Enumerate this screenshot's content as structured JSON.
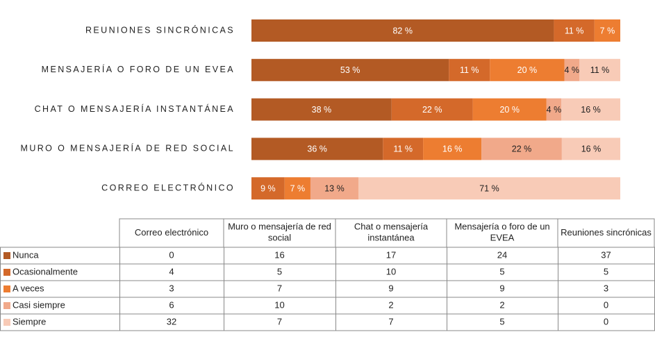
{
  "chart_data": {
    "type": "bar",
    "orientation": "horizontal",
    "stacked": "percent",
    "categories": [
      "Correo electrónico",
      "Muro o mensajería de red social",
      "Chat o mensajería instantánea",
      "Mensajería o foro de un EVEA",
      "Reuniones sincrónicas"
    ],
    "series": [
      {
        "name": "Nunca",
        "color": "#b35a24",
        "label_color": "#ffffff",
        "values": [
          0,
          36,
          38,
          53,
          82
        ],
        "value_labels": [
          null,
          "36 %",
          "38 %",
          "53 %",
          "82 %"
        ],
        "counts": [
          0,
          16,
          17,
          24,
          37
        ]
      },
      {
        "name": "Ocasionalmente",
        "color": "#d4692a",
        "label_color": "#ffffff",
        "values": [
          9,
          11,
          22,
          11,
          11
        ],
        "value_labels": [
          "9 %",
          "11 %",
          "22 %",
          "11 %",
          "11 %"
        ],
        "counts": [
          4,
          5,
          10,
          5,
          5
        ]
      },
      {
        "name": "A veces",
        "color": "#ed7d31",
        "label_color": "#ffffff",
        "values": [
          7,
          16,
          20,
          20,
          7
        ],
        "value_labels": [
          "7 %",
          "16 %",
          "20 %",
          "20 %",
          "7 %"
        ],
        "counts": [
          3,
          7,
          9,
          9,
          3
        ]
      },
      {
        "name": "Casi siempre",
        "color": "#f1a98a",
        "label_color": "#222222",
        "values": [
          13,
          22,
          4,
          4,
          0
        ],
        "value_labels": [
          "13 %",
          "22 %",
          "4 %",
          "4 %",
          null
        ],
        "counts": [
          6,
          10,
          2,
          2,
          0
        ]
      },
      {
        "name": "Siempre",
        "color": "#f8cbb7",
        "label_color": "#222222",
        "values": [
          71,
          16,
          16,
          11,
          0
        ],
        "value_labels": [
          "71 %",
          "16 %",
          "16 %",
          "11 %",
          null
        ],
        "counts": [
          32,
          7,
          7,
          5,
          0
        ]
      }
    ]
  }
}
